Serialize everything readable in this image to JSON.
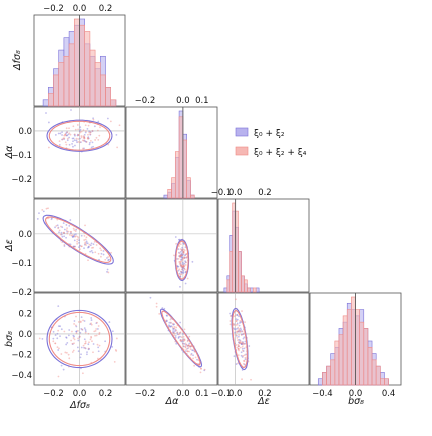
{
  "chart_data": {
    "type": "corner",
    "parameters": [
      {
        "key": "dfs8",
        "label": "Δfσ₈",
        "range": [
          -0.35,
          0.35
        ],
        "ticks": [
          -0.2,
          0.0,
          0.2
        ],
        "tick_labels": [
          "−0.2",
          "0.0",
          "0.2"
        ]
      },
      {
        "key": "da",
        "label": "Δα",
        "range": [
          -0.3,
          0.18
        ],
        "ticks": [
          -0.2,
          0.0,
          0.1
        ],
        "tick_labels": [
          "−0.2",
          "0.0",
          "0.1"
        ]
      },
      {
        "key": "de",
        "label": "Δε",
        "range": [
          -0.12,
          0.5
        ],
        "ticks": [
          -0.1,
          0.0,
          0.2
        ],
        "tick_labels": [
          "−0.1",
          "0.0",
          "0.2"
        ]
      },
      {
        "key": "bs8",
        "label": "bσ₈",
        "range": [
          -0.55,
          0.55
        ],
        "ticks": [
          -0.4,
          0.0,
          0.4
        ],
        "tick_labels": [
          "−0.4",
          "0.0",
          "0.4"
        ]
      }
    ],
    "y_axis_ticks": {
      "da": {
        "ticks": [
          -0.2,
          -0.1,
          0.0
        ],
        "tick_labels": [
          "−0.2",
          "−0.1",
          "0.0"
        ],
        "range": [
          -0.28,
          0.1
        ]
      },
      "de": {
        "ticks": [
          -0.2,
          -0.1,
          0.0
        ],
        "tick_labels": [
          "−0.2",
          "−0.1",
          "0.0"
        ],
        "range": [
          -0.2,
          0.12
        ]
      },
      "bs8": {
        "ticks": [
          -0.4,
          -0.2,
          0.0,
          0.2
        ],
        "tick_labels": [
          "−0.4",
          "−0.2",
          "0.0",
          "0.2"
        ],
        "range": [
          -0.5,
          0.4
        ]
      }
    },
    "series": [
      {
        "name": "ξ₀ + ξ₂",
        "color": "#7b72d8",
        "fill": "#b8b2ee"
      },
      {
        "name": "ξ₀ + ξ₂ + ξ₄",
        "color": "#ef8a86",
        "fill": "#f6b8b4"
      }
    ],
    "truth_value": 0.0,
    "diag_hist": {
      "dfs8": {
        "edges": [
          -0.28,
          -0.24,
          -0.2,
          -0.16,
          -0.12,
          -0.08,
          -0.04,
          0.0,
          0.04,
          0.08,
          0.12,
          0.16,
          0.2,
          0.24,
          0.28
        ],
        "s1": [
          1,
          3,
          6,
          9,
          11,
          12,
          13,
          14,
          10,
          8,
          6,
          8,
          3,
          1
        ],
        "s2": [
          0,
          2,
          5,
          7,
          8,
          10,
          14,
          13,
          12,
          9,
          7,
          5,
          3,
          1
        ]
      },
      "da": {
        "edges": [
          -0.1,
          -0.08,
          -0.06,
          -0.04,
          -0.02,
          0.0,
          0.02,
          0.04,
          0.06
        ],
        "s1": [
          1,
          2,
          5,
          14,
          30,
          22,
          6,
          1
        ],
        "s2": [
          0,
          3,
          7,
          16,
          28,
          20,
          7,
          1
        ]
      },
      "de": {
        "edges": [
          -0.08,
          -0.06,
          -0.04,
          -0.02,
          0.0,
          0.02,
          0.04,
          0.06,
          0.08,
          0.1,
          0.12,
          0.14,
          0.16
        ],
        "s1": [
          1,
          4,
          14,
          20,
          16,
          10,
          4,
          2,
          1,
          1,
          0,
          1
        ],
        "s2": [
          0,
          3,
          10,
          22,
          20,
          10,
          4,
          3,
          1,
          0,
          1,
          0
        ]
      },
      "bs8": {
        "edges": [
          -0.45,
          -0.4,
          -0.35,
          -0.3,
          -0.25,
          -0.2,
          -0.15,
          -0.1,
          -0.05,
          0.0,
          0.05,
          0.1,
          0.15,
          0.2,
          0.25,
          0.3,
          0.35,
          0.4
        ],
        "s1": [
          1,
          2,
          3,
          5,
          6,
          9,
          10,
          13,
          12,
          11,
          12,
          9,
          7,
          5,
          3,
          2,
          1
        ],
        "s2": [
          0,
          2,
          3,
          4,
          7,
          8,
          11,
          12,
          14,
          12,
          10,
          9,
          6,
          4,
          3,
          1,
          1
        ]
      }
    },
    "contours": [
      {
        "x": "dfs8",
        "y": "da",
        "cx": 0.0,
        "cy": -0.02,
        "rx": 0.25,
        "ry": 0.065,
        "rot": 0
      },
      {
        "x": "dfs8",
        "y": "de",
        "cx": -0.01,
        "cy": -0.02,
        "rx": 0.28,
        "ry": 0.04,
        "rot": -0.27
      },
      {
        "x": "da",
        "y": "de",
        "cx": -0.005,
        "cy": -0.09,
        "rx": 0.035,
        "ry": 0.07,
        "rot": 0
      },
      {
        "x": "dfs8",
        "y": "bs8",
        "cx": 0.0,
        "cy": -0.05,
        "rx": 0.25,
        "ry": 0.28,
        "rot": 0
      },
      {
        "x": "da",
        "y": "bs8",
        "cx": -0.01,
        "cy": -0.04,
        "rx": 0.035,
        "ry": 0.3,
        "rot": 0.35
      },
      {
        "x": "de",
        "y": "bs8",
        "cx": 0.03,
        "cy": -0.05,
        "rx": 0.045,
        "ry": 0.3,
        "rot": 0.1
      }
    ]
  }
}
